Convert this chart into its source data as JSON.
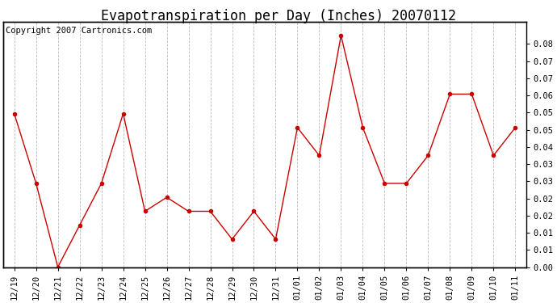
{
  "title": "Evapotranspiration per Day (Inches) 20070112",
  "copyright_text": "Copyright 2007 Cartronics.com",
  "labels": [
    "12/19",
    "12/20",
    "12/21",
    "12/22",
    "12/23",
    "12/24",
    "12/25",
    "12/26",
    "12/27",
    "12/28",
    "12/29",
    "12/30",
    "12/31",
    "01/01",
    "01/02",
    "01/03",
    "01/04",
    "01/05",
    "01/06",
    "01/07",
    "01/08",
    "01/09",
    "01/10",
    "01/11"
  ],
  "values": [
    0.055,
    0.03,
    0.0,
    0.015,
    0.03,
    0.055,
    0.02,
    0.025,
    0.02,
    0.02,
    0.01,
    0.02,
    0.01,
    0.05,
    0.04,
    0.083,
    0.05,
    0.03,
    0.03,
    0.04,
    0.062,
    0.062,
    0.04,
    0.05
  ],
  "line_color": "#cc0000",
  "marker": "o",
  "marker_color": "#cc0000",
  "marker_fill": "#cc0000",
  "bg_color": "#ffffff",
  "plot_bg_color": "#ffffff",
  "grid_color": "#aaaaaa",
  "ylim_min": 0.0,
  "ylim_max": 0.088,
  "ytick_positions": [
    0.0,
    0.00615,
    0.01231,
    0.01846,
    0.02462,
    0.03077,
    0.03692,
    0.04308,
    0.04923,
    0.05538,
    0.06154,
    0.06769,
    0.07385,
    0.08
  ],
  "ytick_labels": [
    "0.00",
    "0.01",
    "0.01",
    "0.02",
    "0.02",
    "0.03",
    "0.03",
    "0.04",
    "0.05",
    "0.05",
    "0.06",
    "0.07",
    "0.07",
    "0.08"
  ],
  "title_fontsize": 12,
  "copyright_fontsize": 7.5,
  "tick_fontsize": 7.5
}
